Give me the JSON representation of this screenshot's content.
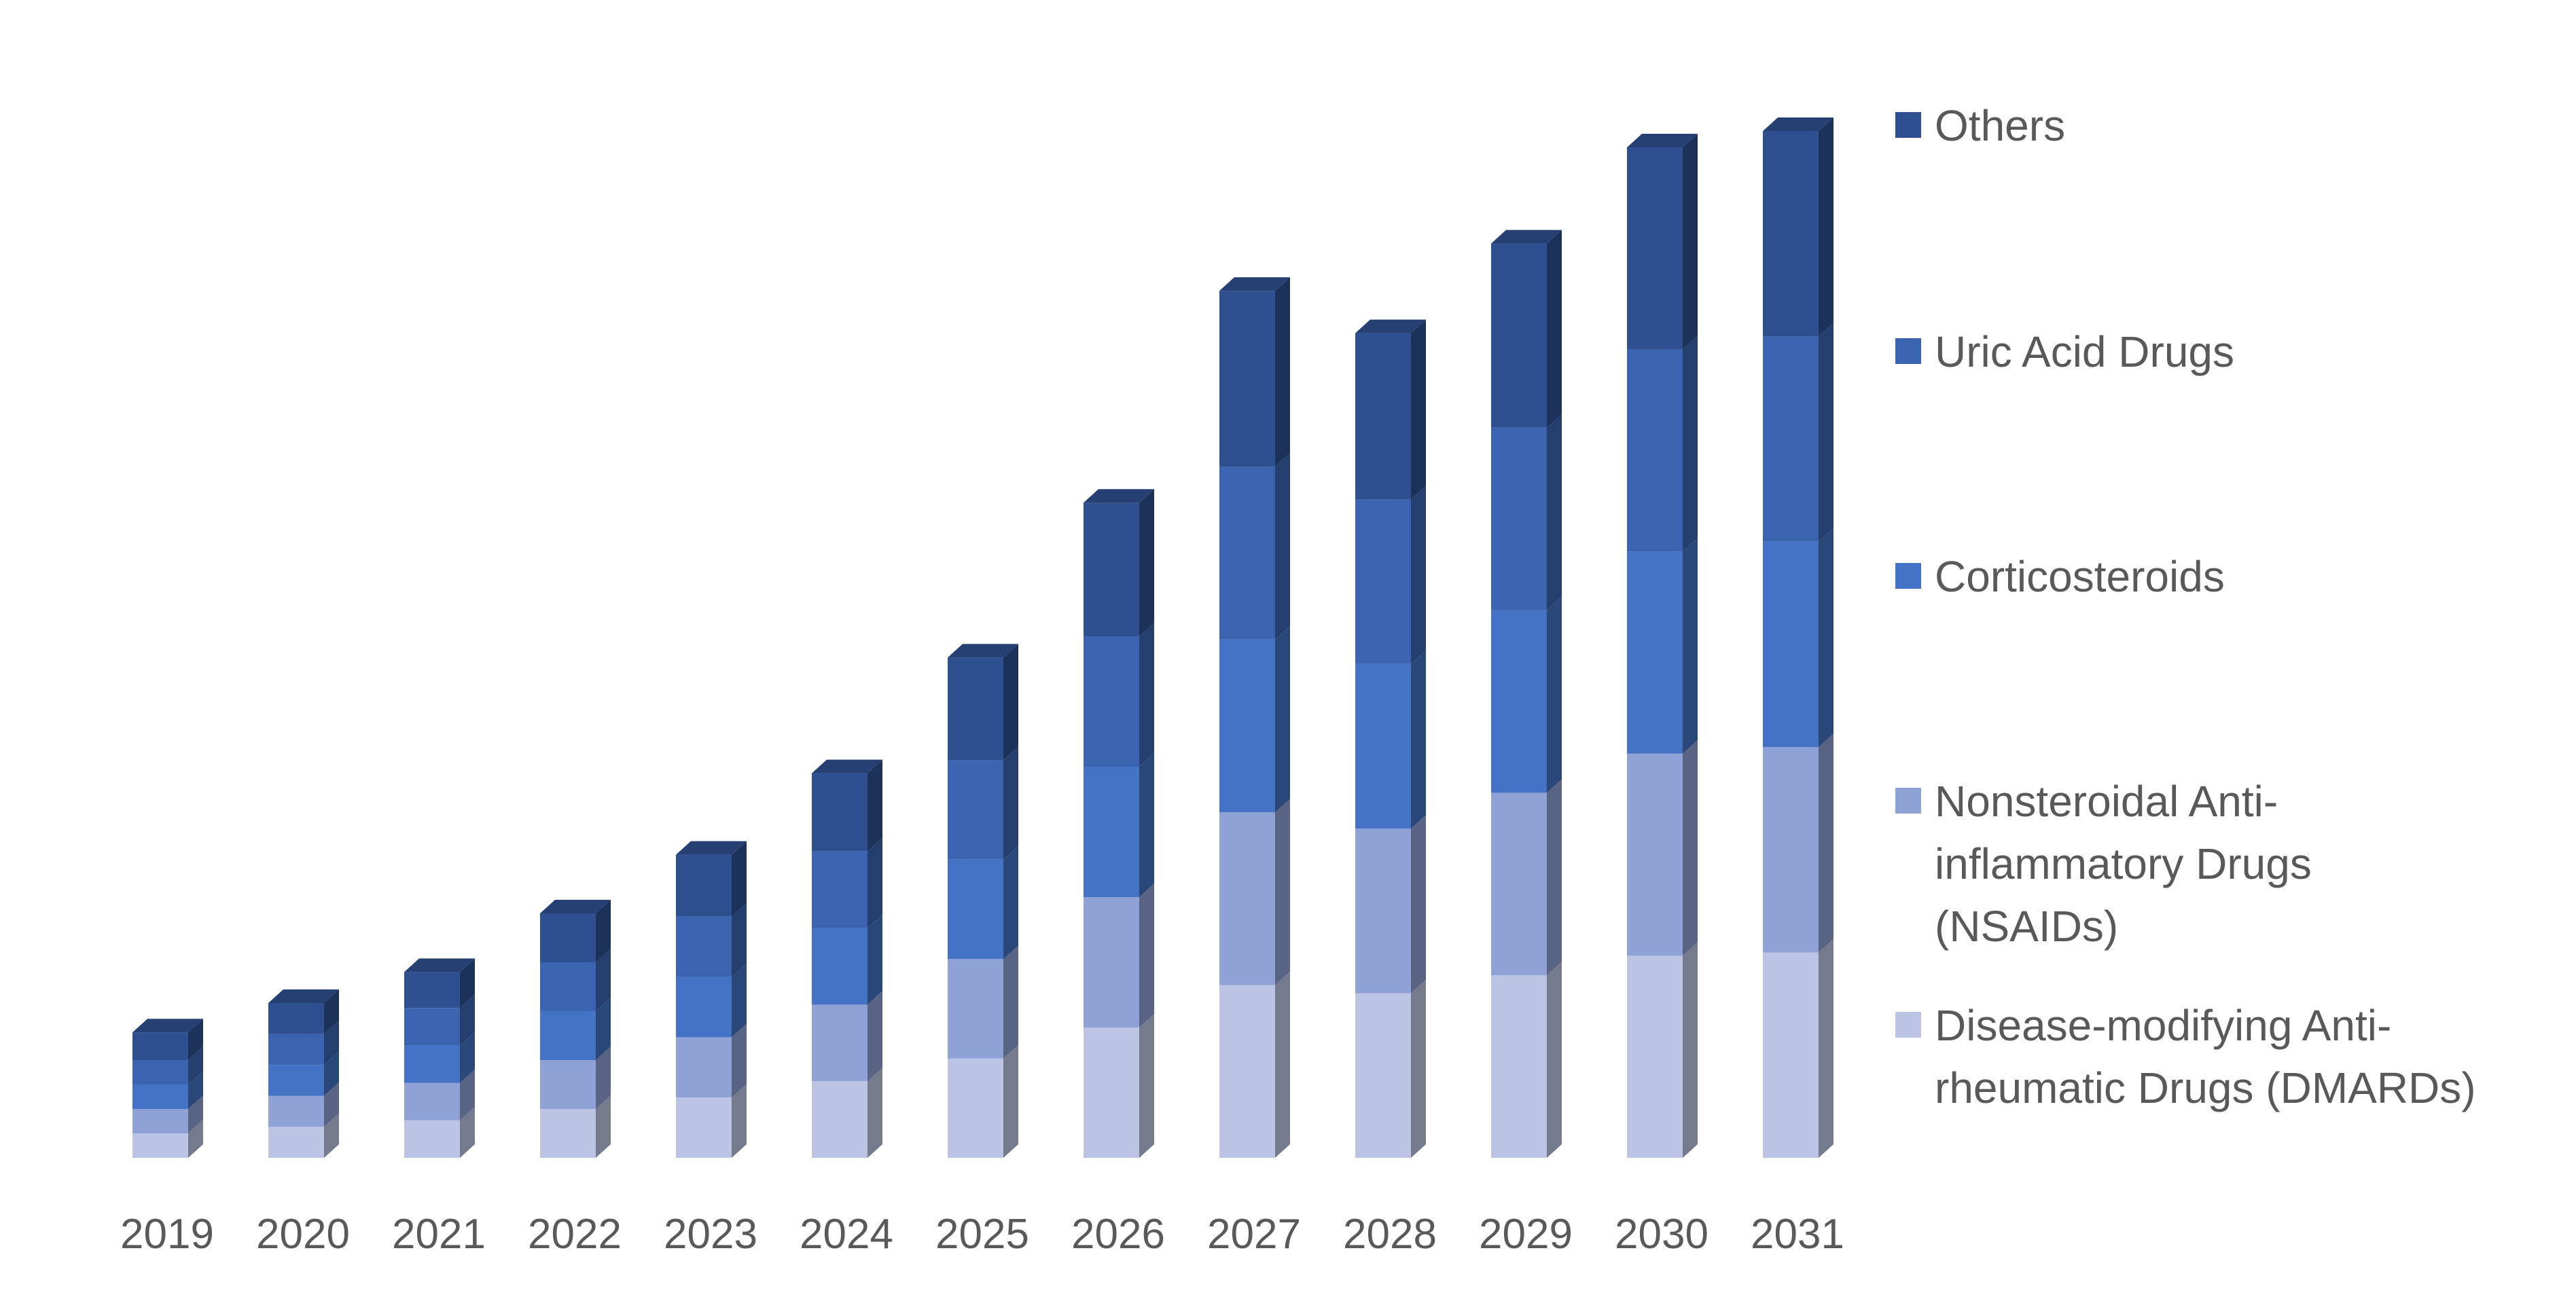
{
  "chart_data": {
    "type": "bar",
    "stacked": true,
    "style": "3d-stacked-column",
    "title": "",
    "xlabel": "",
    "ylabel": "",
    "y_axis_visible": false,
    "grid": false,
    "legend_position": "right",
    "categories": [
      "2019",
      "2020",
      "2021",
      "2022",
      "2023",
      "2024",
      "2025",
      "2026",
      "2027",
      "2028",
      "2029",
      "2030",
      "2031"
    ],
    "series": [
      {
        "name": "Disease-modifying Anti-rheumatic Drugs (DMARDs)",
        "color": "#bcc4e4",
        "values": [
          15,
          19,
          23,
          30,
          37,
          47,
          61,
          80,
          106,
          101,
          112,
          124,
          126
        ]
      },
      {
        "name": "Nonsteroidal Anti-inflammatory Drugs (NSAIDs)",
        "color": "#8fa2d6",
        "values": [
          15,
          19,
          23,
          30,
          37,
          47,
          61,
          80,
          106,
          101,
          112,
          124,
          126
        ]
      },
      {
        "name": "Corticosteroids",
        "color": "#4472c4",
        "values": [
          15,
          19,
          23,
          30,
          37,
          47,
          61,
          80,
          106,
          101,
          112,
          124,
          126
        ]
      },
      {
        "name": "Uric Acid Drugs",
        "color": "#3a64af",
        "values": [
          15,
          19,
          23,
          30,
          37,
          47,
          61,
          80,
          106,
          101,
          112,
          124,
          126
        ]
      },
      {
        "name": "Others",
        "color": "#2f5090",
        "values": [
          17,
          19,
          22,
          30,
          38,
          48,
          63,
          82,
          108,
          102,
          113,
          124,
          126
        ]
      }
    ],
    "ylim": [
      0,
      650
    ]
  }
}
